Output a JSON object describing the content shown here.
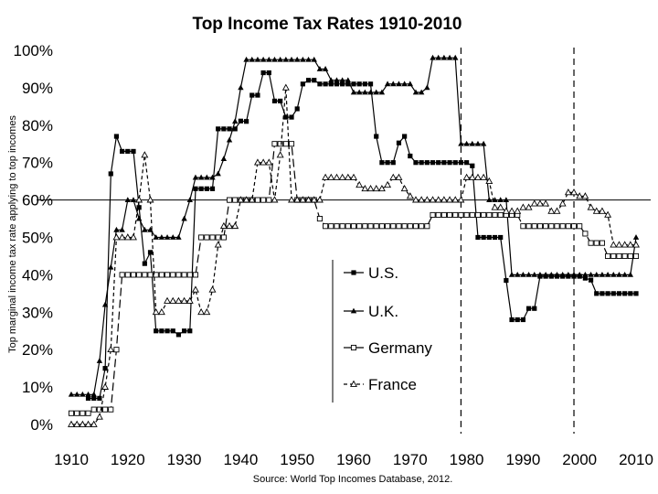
{
  "chart_data": {
    "type": "line",
    "title": "Top Income Tax Rates 1910-2010",
    "ylabel": "Top marginal income tax rate applying to top incomes",
    "source": "Source: World Top Incomes Database, 2012.",
    "xlim": [
      1910,
      2010
    ],
    "ylim": [
      0,
      100
    ],
    "x_ticks": [
      1910,
      1920,
      1930,
      1940,
      1950,
      1960,
      1970,
      1980,
      1990,
      2000,
      2010
    ],
    "x_tick_labels": [
      "1910",
      "1920",
      "1930",
      "1940",
      "1950",
      "1960",
      "1970",
      "1980",
      "1990",
      "2000",
      "2010"
    ],
    "y_ticks": [
      0,
      10,
      20,
      30,
      40,
      50,
      60,
      70,
      80,
      90,
      100
    ],
    "y_tick_labels": [
      "0%",
      "10%",
      "20%",
      "30%",
      "40%",
      "50%",
      "60%",
      "70%",
      "80%",
      "90%",
      "100%"
    ],
    "reference_line_y": 60,
    "dashed_vlines": [
      1979,
      1999
    ],
    "legend_position": "center-right",
    "series": [
      {
        "name": "U.S.",
        "color": "#000000",
        "dash": "solid",
        "marker": "square-filled",
        "x": [
          1913,
          1914,
          1915,
          1916,
          1917,
          1918,
          1919,
          1920,
          1921,
          1922,
          1923,
          1924,
          1925,
          1926,
          1927,
          1928,
          1929,
          1930,
          1931,
          1932,
          1933,
          1934,
          1935,
          1936,
          1937,
          1938,
          1939,
          1940,
          1941,
          1942,
          1943,
          1944,
          1945,
          1946,
          1947,
          1948,
          1949,
          1950,
          1951,
          1952,
          1953,
          1954,
          1955,
          1956,
          1957,
          1958,
          1959,
          1960,
          1961,
          1962,
          1963,
          1964,
          1965,
          1966,
          1967,
          1968,
          1969,
          1970,
          1971,
          1972,
          1973,
          1974,
          1975,
          1976,
          1977,
          1978,
          1979,
          1980,
          1981,
          1982,
          1983,
          1984,
          1985,
          1986,
          1987,
          1988,
          1989,
          1990,
          1991,
          1992,
          1993,
          1994,
          1995,
          1996,
          1997,
          1998,
          1999,
          2000,
          2001,
          2002,
          2003,
          2004,
          2005,
          2006,
          2007,
          2008,
          2009,
          2010
        ],
        "values": [
          7,
          7,
          7,
          15,
          67,
          77,
          73,
          73,
          73,
          58,
          43,
          46,
          25,
          25,
          25,
          25,
          24,
          25,
          25,
          63,
          63,
          63,
          63,
          79,
          79,
          79,
          79,
          81.1,
          81,
          88,
          88,
          94,
          94,
          86.45,
          86.45,
          82.13,
          82.13,
          84.36,
          91,
          92,
          92,
          91,
          91,
          91,
          91,
          91,
          91,
          91,
          91,
          91,
          91,
          77,
          70,
          70,
          70,
          75.25,
          77,
          71.75,
          70,
          70,
          70,
          70,
          70,
          70,
          70,
          70,
          70,
          70,
          69.13,
          50,
          50,
          50,
          50,
          50,
          38.5,
          28,
          28,
          28,
          31,
          31,
          39.6,
          39.6,
          39.6,
          39.6,
          39.6,
          39.6,
          39.6,
          39.6,
          39.1,
          38.6,
          35,
          35,
          35,
          35,
          35,
          35,
          35,
          35
        ]
      },
      {
        "name": "U.K.",
        "color": "#000000",
        "dash": "solid",
        "marker": "triangle-filled",
        "x": [
          1910,
          1911,
          1912,
          1913,
          1914,
          1915,
          1916,
          1917,
          1918,
          1919,
          1920,
          1921,
          1922,
          1923,
          1924,
          1925,
          1926,
          1927,
          1928,
          1929,
          1930,
          1931,
          1932,
          1933,
          1934,
          1935,
          1936,
          1937,
          1938,
          1939,
          1940,
          1941,
          1942,
          1943,
          1944,
          1945,
          1946,
          1947,
          1948,
          1949,
          1950,
          1951,
          1952,
          1953,
          1954,
          1955,
          1956,
          1957,
          1958,
          1959,
          1960,
          1961,
          1962,
          1963,
          1964,
          1965,
          1966,
          1967,
          1968,
          1969,
          1970,
          1971,
          1972,
          1973,
          1974,
          1975,
          1976,
          1977,
          1978,
          1979,
          1980,
          1981,
          1982,
          1983,
          1984,
          1985,
          1986,
          1987,
          1988,
          1989,
          1990,
          1991,
          1992,
          1993,
          1994,
          1995,
          1996,
          1997,
          1998,
          1999,
          2000,
          2001,
          2002,
          2003,
          2004,
          2005,
          2006,
          2007,
          2008,
          2009,
          2010
        ],
        "values": [
          8,
          8,
          8,
          8,
          8,
          17,
          32,
          42,
          52,
          52,
          60,
          60,
          55,
          52,
          52,
          50,
          50,
          50,
          50,
          50,
          55,
          60,
          66,
          66,
          66,
          66,
          67,
          71,
          76,
          81,
          90,
          97.5,
          97.5,
          97.5,
          97.5,
          97.5,
          97.5,
          97.5,
          97.5,
          97.5,
          97.5,
          97.5,
          97.5,
          97.5,
          95,
          95,
          92,
          92,
          92,
          92,
          88.75,
          88.75,
          88.75,
          88.75,
          88.75,
          88.75,
          91,
          91,
          91,
          91,
          91,
          88.75,
          88.75,
          90,
          98,
          98,
          98,
          98,
          98,
          75,
          75,
          75,
          75,
          75,
          60,
          60,
          60,
          60,
          40,
          40,
          40,
          40,
          40,
          40,
          40,
          40,
          40,
          40,
          40,
          40,
          40,
          40,
          40,
          40,
          40,
          40,
          40,
          40,
          40,
          40,
          50
        ]
      },
      {
        "name": "Germany",
        "color": "#000000",
        "dash": "long-dash",
        "marker": "square-open",
        "x": [
          1910,
          1911,
          1912,
          1913,
          1914,
          1915,
          1916,
          1917,
          1918,
          1919,
          1920,
          1921,
          1922,
          1923,
          1924,
          1925,
          1926,
          1927,
          1928,
          1929,
          1930,
          1931,
          1932,
          1933,
          1934,
          1935,
          1936,
          1937,
          1938,
          1939,
          1940,
          1941,
          1942,
          1943,
          1944,
          1945,
          1946,
          1947,
          1948,
          1949,
          1950,
          1951,
          1952,
          1953,
          1954,
          1955,
          1956,
          1957,
          1958,
          1959,
          1960,
          1961,
          1962,
          1963,
          1964,
          1965,
          1966,
          1967,
          1968,
          1969,
          1970,
          1971,
          1972,
          1973,
          1974,
          1975,
          1976,
          1977,
          1978,
          1979,
          1980,
          1981,
          1982,
          1983,
          1984,
          1985,
          1986,
          1987,
          1988,
          1989,
          1990,
          1991,
          1992,
          1993,
          1994,
          1995,
          1996,
          1997,
          1998,
          1999,
          2000,
          2001,
          2002,
          2003,
          2004,
          2005,
          2006,
          2007,
          2008,
          2009,
          2010
        ],
        "values": [
          3,
          3,
          3,
          3,
          4,
          4,
          4,
          4,
          20,
          40,
          40,
          40,
          40,
          40,
          40,
          40,
          40,
          40,
          40,
          40,
          40,
          40,
          40,
          50,
          50,
          50,
          50,
          50,
          60,
          60,
          60,
          60,
          60,
          60,
          60,
          60,
          75,
          75,
          75,
          75,
          60,
          60,
          60,
          60,
          55,
          53,
          53,
          53,
          53,
          53,
          53,
          53,
          53,
          53,
          53,
          53,
          53,
          53,
          53,
          53,
          53,
          53,
          53,
          53,
          56,
          56,
          56,
          56,
          56,
          56,
          56,
          56,
          56,
          56,
          56,
          56,
          56,
          56,
          56,
          56,
          53,
          53,
          53,
          53,
          53,
          53,
          53,
          53,
          53,
          53,
          53,
          51,
          48.5,
          48.5,
          48.5,
          45,
          45,
          45,
          45,
          45,
          45
        ]
      },
      {
        "name": "France",
        "color": "#000000",
        "dash": "short-dash",
        "marker": "triangle-open",
        "x": [
          1910,
          1911,
          1912,
          1913,
          1914,
          1915,
          1916,
          1917,
          1918,
          1919,
          1920,
          1921,
          1922,
          1923,
          1924,
          1925,
          1926,
          1927,
          1928,
          1929,
          1930,
          1931,
          1932,
          1933,
          1934,
          1935,
          1936,
          1937,
          1938,
          1939,
          1940,
          1941,
          1942,
          1943,
          1944,
          1945,
          1946,
          1947,
          1948,
          1949,
          1950,
          1951,
          1952,
          1953,
          1954,
          1955,
          1956,
          1957,
          1958,
          1959,
          1960,
          1961,
          1962,
          1963,
          1964,
          1965,
          1966,
          1967,
          1968,
          1969,
          1970,
          1971,
          1972,
          1973,
          1974,
          1975,
          1976,
          1977,
          1978,
          1979,
          1980,
          1981,
          1982,
          1983,
          1984,
          1985,
          1986,
          1987,
          1988,
          1989,
          1990,
          1991,
          1992,
          1993,
          1994,
          1995,
          1996,
          1997,
          1998,
          1999,
          2000,
          2001,
          2002,
          2003,
          2004,
          2005,
          2006,
          2007,
          2008,
          2009,
          2010
        ],
        "values": [
          0,
          0,
          0,
          0,
          0,
          2,
          10,
          20,
          50,
          50,
          50,
          50,
          60,
          72,
          60,
          30,
          30,
          33,
          33,
          33,
          33,
          33,
          36,
          30,
          30,
          36,
          48,
          53,
          53,
          53,
          60,
          60,
          60,
          70,
          70,
          70,
          60,
          72,
          90,
          60,
          60,
          60,
          60,
          60,
          60,
          66,
          66,
          66,
          66,
          66,
          66,
          64,
          63,
          63,
          63,
          63,
          64,
          66,
          66,
          63,
          61,
          60,
          60,
          60,
          60,
          60,
          60,
          60,
          60,
          60,
          66,
          66,
          66,
          66,
          65,
          58,
          58,
          57,
          57,
          57,
          58,
          58,
          59,
          59,
          59,
          57,
          57,
          59,
          62,
          62,
          61,
          61,
          58,
          57,
          57,
          56,
          48,
          48,
          48,
          48,
          48
        ]
      }
    ]
  }
}
